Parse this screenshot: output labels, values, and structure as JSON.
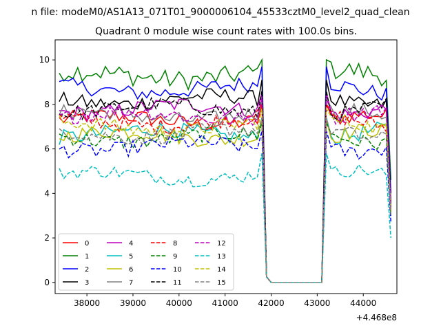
{
  "suptitle": "n file: modeM0/AS1A13_071T01_9000006104_45533cztM0_level2_quad_clean",
  "chart_data": {
    "type": "line",
    "title": "Quadrant 0 module wise count rates with 100.0s bins.",
    "xlabel": "",
    "ylabel": "",
    "x_offset_label": "+4.468e8",
    "xlim": [
      37310,
      44730
    ],
    "ylim": [
      -0.5,
      10.9
    ],
    "xticks": [
      38000,
      39000,
      40000,
      41000,
      42000,
      43000,
      44000
    ],
    "yticks": [
      0,
      2,
      4,
      6,
      8,
      10
    ],
    "grid": false,
    "legend_position": "lower-left",
    "legend_columns": 4,
    "x_start": 37400,
    "x_step": 100,
    "active_segments": [
      [
        37400,
        41800
      ],
      [
        43300,
        44500
      ]
    ],
    "transition_points": {
      "drop": [
        41900,
        42000
      ],
      "rise": [
        43100,
        43200
      ],
      "end": 44600
    },
    "series": [
      {
        "name": "0",
        "color": "#ff0000",
        "dash": "solid",
        "mean": 7.3,
        "amp": 0.35,
        "peak": 8.0,
        "tail": 3.2
      },
      {
        "name": "1",
        "color": "#008000",
        "dash": "solid",
        "mean": 9.3,
        "amp": 0.45,
        "peak": 10.0,
        "tail": 4.6
      },
      {
        "name": "2",
        "color": "#0000ff",
        "dash": "solid",
        "mean": 8.7,
        "amp": 0.35,
        "peak": 9.7,
        "tail": 4.0
      },
      {
        "name": "3",
        "color": "#000000",
        "dash": "solid",
        "mean": 8.2,
        "amp": 0.35,
        "peak": 9.1,
        "tail": 3.6
      },
      {
        "name": "4",
        "color": "#bf00bf",
        "dash": "solid",
        "mean": 7.8,
        "amp": 0.35,
        "peak": 8.5,
        "tail": 3.5
      },
      {
        "name": "5",
        "color": "#00bfbf",
        "dash": "solid",
        "mean": 6.7,
        "amp": 0.35,
        "peak": 7.4,
        "tail": 3.0
      },
      {
        "name": "6",
        "color": "#bfbf00",
        "dash": "solid",
        "mean": 6.6,
        "amp": 0.35,
        "peak": 7.3,
        "tail": 3.0
      },
      {
        "name": "7",
        "color": "#808080",
        "dash": "solid",
        "mean": 7.5,
        "amp": 0.35,
        "peak": 8.2,
        "tail": 3.4
      },
      {
        "name": "8",
        "color": "#ff0000",
        "dash": "dashed",
        "mean": 7.2,
        "amp": 0.35,
        "peak": 8.0,
        "tail": 3.2
      },
      {
        "name": "9",
        "color": "#008000",
        "dash": "dashed",
        "mean": 6.5,
        "amp": 0.35,
        "peak": 7.2,
        "tail": 3.0
      },
      {
        "name": "10",
        "color": "#0000ff",
        "dash": "dashed",
        "mean": 6.1,
        "amp": 0.35,
        "peak": 6.8,
        "tail": 2.7
      },
      {
        "name": "11",
        "color": "#000000",
        "dash": "dashed",
        "mean": 7.8,
        "amp": 0.35,
        "peak": 8.6,
        "tail": 3.5
      },
      {
        "name": "12",
        "color": "#bf00bf",
        "dash": "dashed",
        "mean": 7.5,
        "amp": 0.35,
        "peak": 8.3,
        "tail": 3.4
      },
      {
        "name": "13",
        "color": "#00bfbf",
        "dash": "dashed",
        "mean": 4.8,
        "amp": 0.3,
        "peak": 5.8,
        "tail": 2.0
      },
      {
        "name": "14",
        "color": "#bfbf00",
        "dash": "dashed",
        "mean": 7.0,
        "amp": 0.35,
        "peak": 7.8,
        "tail": 3.1
      },
      {
        "name": "15",
        "color": "#808080",
        "dash": "dashed",
        "mean": 6.7,
        "amp": 0.35,
        "peak": 7.4,
        "tail": 3.0
      }
    ]
  }
}
